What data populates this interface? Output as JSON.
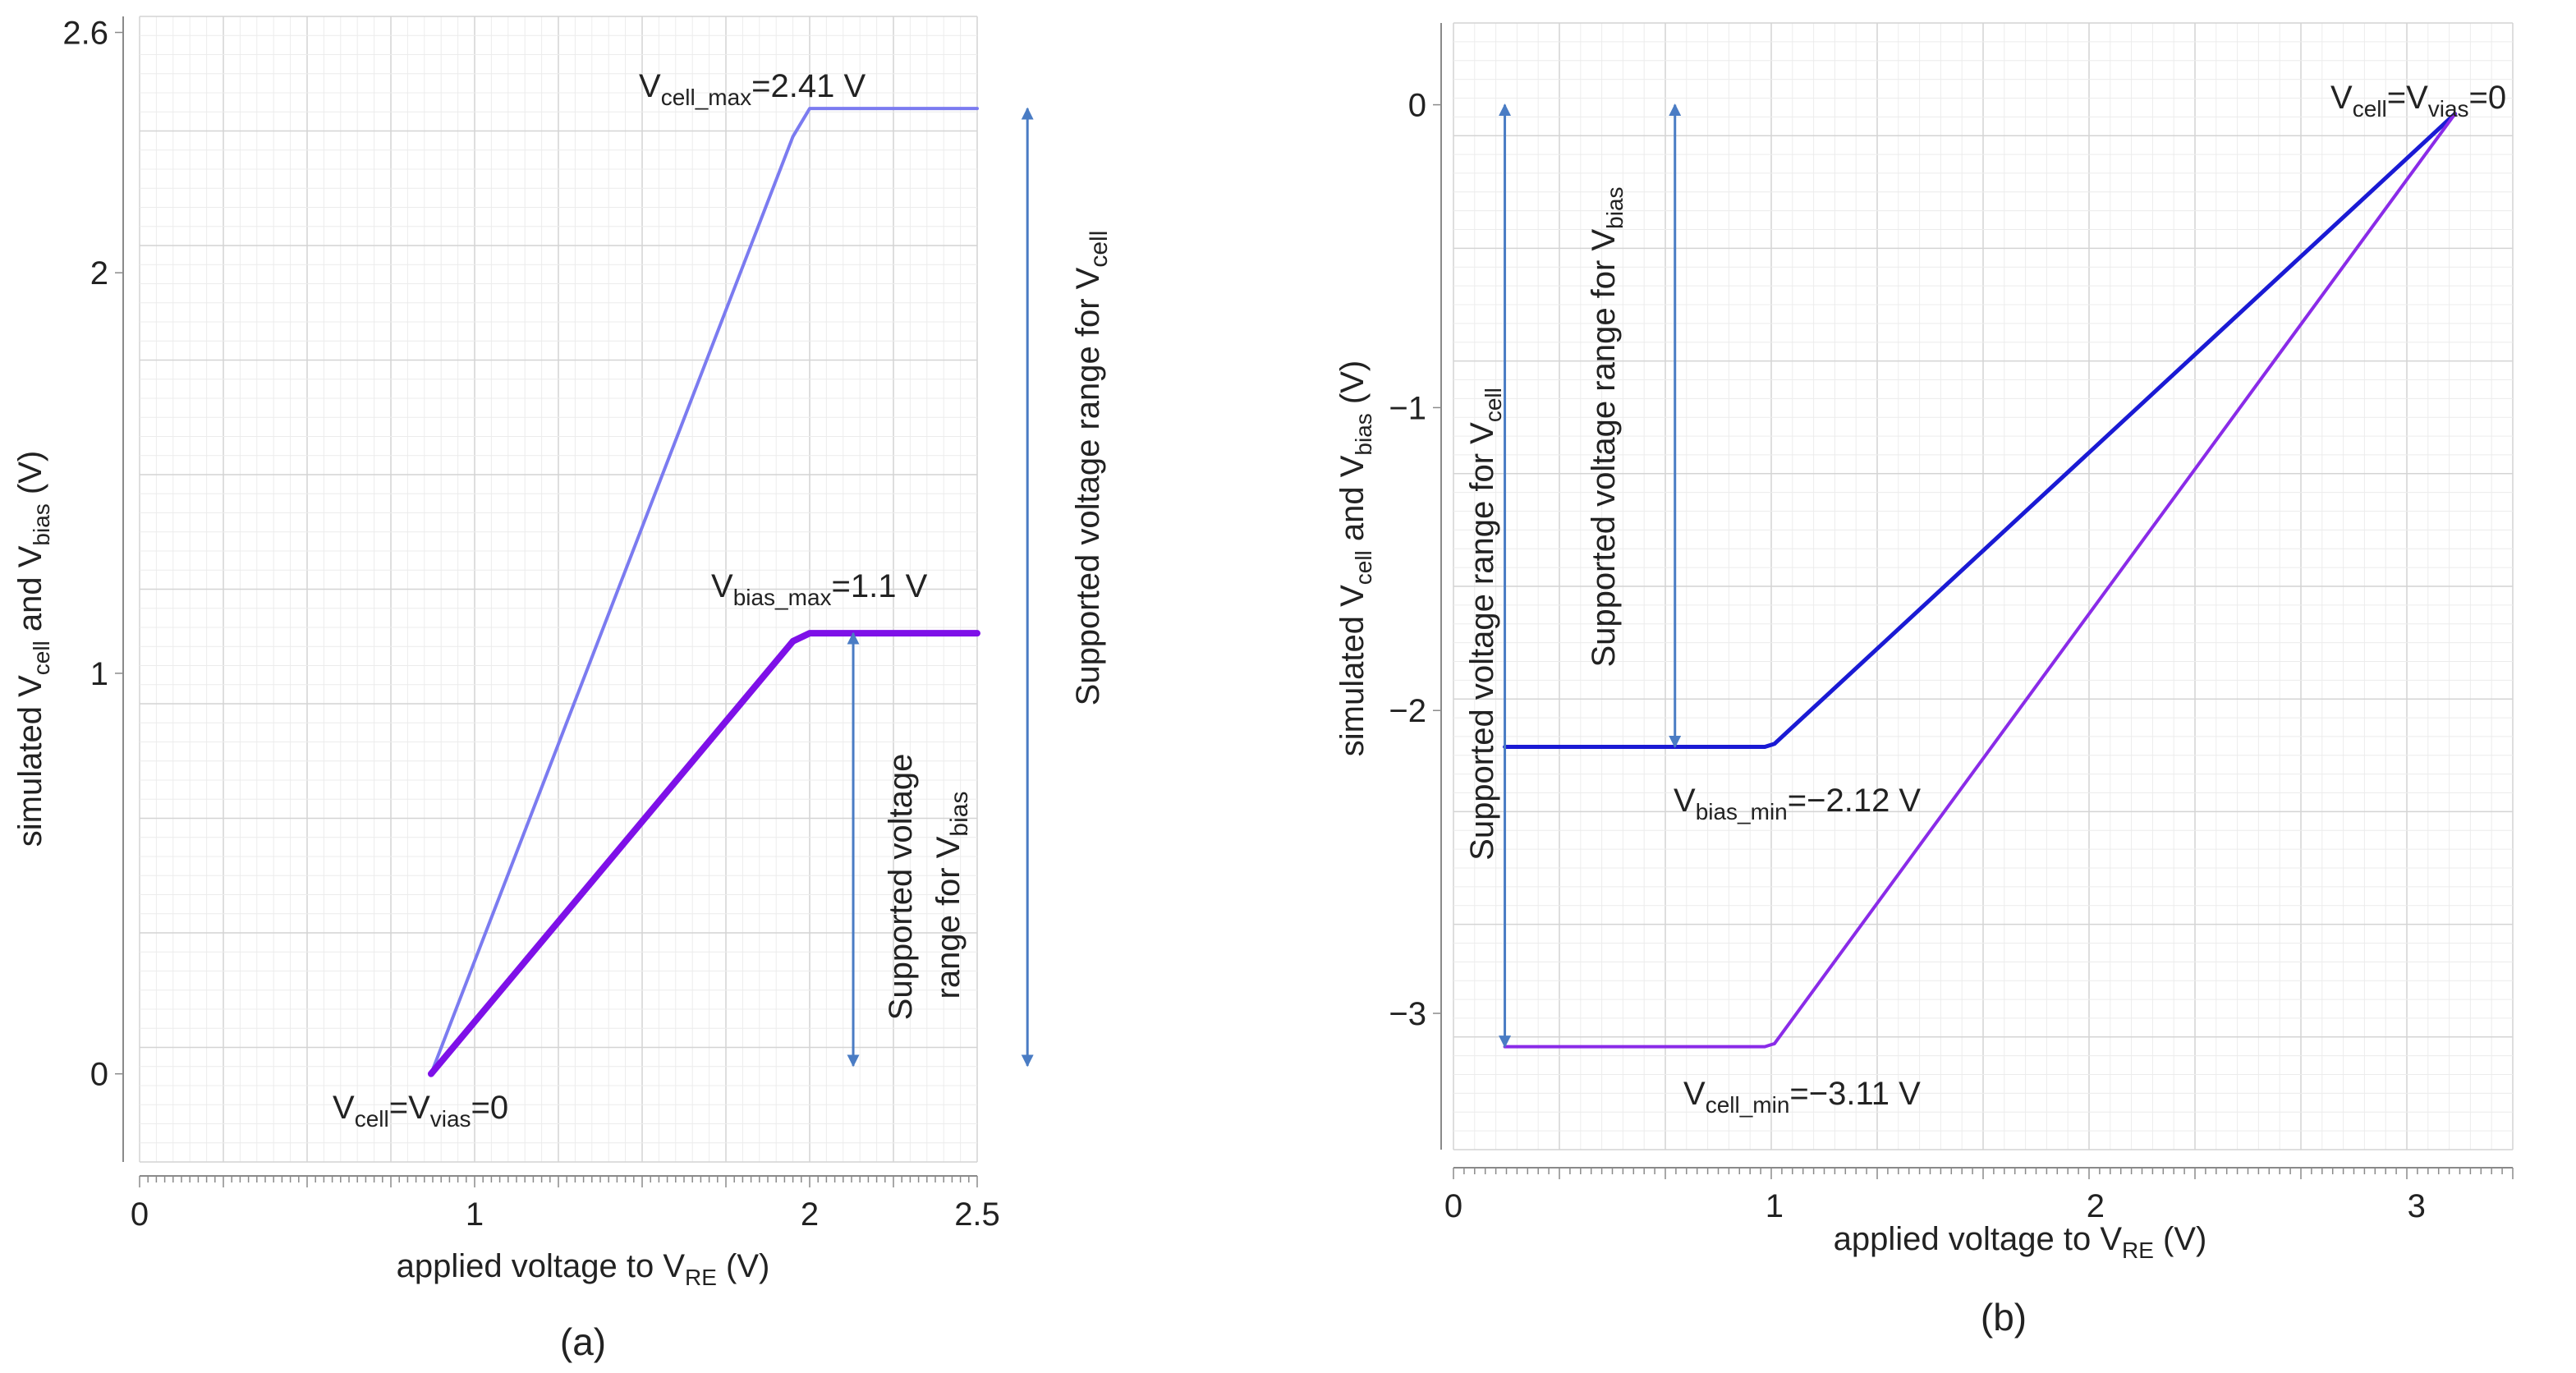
{
  "colors": {
    "grid_major": "#d4d4d4",
    "grid_minor": "#ececec",
    "axis": "#8a8a8a",
    "vcell_line_a": "#7b7bf0",
    "vbias_line_a": "#7e10e8",
    "vbias_line_b": "#1a1ad4",
    "vcell_line_b": "#8a2be8",
    "range_arrow": "#4a7cc4"
  },
  "chart_data": [
    {
      "type": "line",
      "panel_label": "(a)",
      "xlabel": {
        "main": "applied voltage to V",
        "sub": "RE",
        "tail": " (V)"
      },
      "ylabel": {
        "p1": "simulated V",
        "s1": "cell",
        "p2": " and V",
        "s2": "bias",
        "p3": " (V)"
      },
      "xlim": [
        0,
        2.5
      ],
      "ylim": [
        -0.22,
        2.64
      ],
      "x_ticks": [
        0,
        1,
        2,
        2.5
      ],
      "x_tick_labels": [
        "0",
        "1",
        "2",
        "2.5"
      ],
      "y_ticks": [
        0,
        1,
        2,
        2.6
      ],
      "y_tick_labels": [
        "0",
        "1",
        "2",
        "2.6"
      ],
      "grid": true,
      "series": [
        {
          "name": "Vcell",
          "x": [
            0.87,
            1.95,
            2.0,
            2.5
          ],
          "y": [
            0,
            2.34,
            2.41,
            2.41
          ]
        },
        {
          "name": "Vbias",
          "x": [
            0.87,
            1.95,
            2.0,
            2.5
          ],
          "y": [
            0,
            1.08,
            1.1,
            1.1
          ]
        }
      ],
      "annotations": [
        {
          "id": "vcell_max",
          "parts": [
            "V",
            "cell_max",
            "=2.41 V"
          ]
        },
        {
          "id": "vbias_max",
          "parts": [
            "V",
            "bias_max",
            "=1.1 V"
          ]
        },
        {
          "id": "zero",
          "parts": [
            "V",
            "cell",
            "=V",
            "vias",
            "=0"
          ]
        }
      ],
      "range_arrows": [
        {
          "id": "range_vbias",
          "x": 2.13,
          "y_from": 0.02,
          "y_to": 1.1,
          "label_line1": "Supported voltage",
          "label_line2_main": "range for V",
          "label_line2_sub": "bias"
        },
        {
          "id": "range_vcell",
          "x": 2.65,
          "y_from": 0.02,
          "y_to": 2.41,
          "label_main": "Supported voltage range for V",
          "label_sub": "cell"
        }
      ]
    },
    {
      "type": "line",
      "panel_label": "(b)",
      "xlabel": {
        "main": "applied voltage to V",
        "sub": "RE",
        "tail": " (V)"
      },
      "ylabel": {
        "p1": "simulated V",
        "s1": "cell",
        "p2": " and V",
        "s2": "bias",
        "p3": " (V)"
      },
      "xlim": [
        0,
        3.3
      ],
      "ylim": [
        -3.45,
        0.27
      ],
      "x_ticks": [
        0,
        1,
        2,
        3
      ],
      "x_tick_labels": [
        "0",
        "1",
        "2",
        "3"
      ],
      "y_ticks": [
        0,
        -1,
        -2,
        -3
      ],
      "y_tick_labels": [
        "0",
        "−1",
        "−2",
        "−3"
      ],
      "grid": true,
      "series": [
        {
          "name": "Vbias",
          "x": [
            0.16,
            0.97,
            1.0,
            3.12
          ],
          "y": [
            -2.12,
            -2.12,
            -2.11,
            -0.03
          ]
        },
        {
          "name": "Vcell",
          "x": [
            0.16,
            0.97,
            1.0,
            3.12
          ],
          "y": [
            -3.11,
            -3.11,
            -3.1,
            -0.03
          ]
        }
      ],
      "annotations": [
        {
          "id": "zero",
          "parts": [
            "V",
            "cell",
            "=V",
            "vias",
            "=0"
          ]
        },
        {
          "id": "vbias_min",
          "parts": [
            "V",
            "bias_min",
            "=−2.12 V"
          ]
        },
        {
          "id": "vcell_min",
          "parts": [
            "V",
            "cell_min",
            "=−3.11 V"
          ]
        }
      ],
      "range_arrows": [
        {
          "id": "range_vcell",
          "x": 0.16,
          "y_from": -3.11,
          "y_to": 0,
          "label_main": "Supported voltage range for V",
          "label_sub": "cell"
        },
        {
          "id": "range_vbias",
          "x": 0.69,
          "y_from": -2.12,
          "y_to": 0,
          "label_main": "Supported voltage range for V",
          "label_sub": "bias"
        }
      ]
    }
  ]
}
